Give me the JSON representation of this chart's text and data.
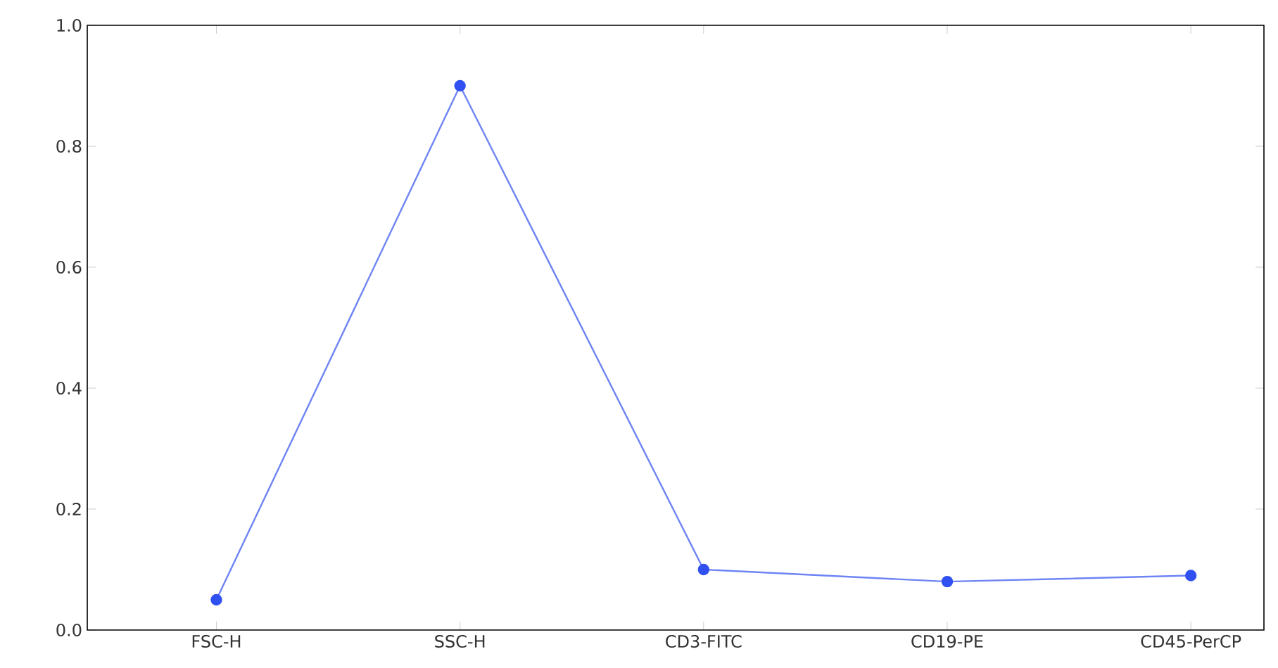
{
  "chart_data": {
    "type": "line",
    "categories": [
      "FSC-H",
      "SSC-H",
      "CD3-FITC",
      "CD19-PE",
      "CD45-PerCP"
    ],
    "values": [
      0.05,
      0.9,
      0.1,
      0.08,
      0.09
    ],
    "color": "#3050f0",
    "marker": "circle",
    "line_style": "solid",
    "ylim": [
      0,
      1.0
    ],
    "yticks": [
      {
        "value": 0,
        "label": "0.0"
      },
      {
        "value": 0.2,
        "label": "0.2"
      },
      {
        "value": 0.4,
        "label": "0.4"
      },
      {
        "value": 0.6,
        "label": "0.6"
      },
      {
        "value": 0.8,
        "label": "0.8"
      },
      {
        "value": 1.0,
        "label": "1.0"
      }
    ],
    "grid": false
  }
}
